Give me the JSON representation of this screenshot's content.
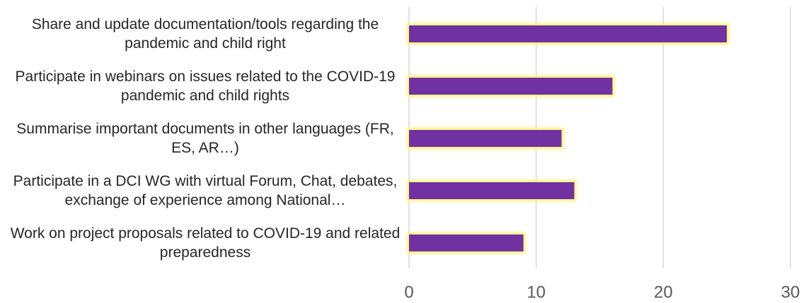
{
  "chart_data": {
    "type": "bar",
    "orientation": "horizontal",
    "categories": [
      "Share and update documentation/tools regarding the pandemic and child right",
      "Participate in webinars on issues related to the COVID-19 pandemic and child rights",
      "Summarise important documents in other languages (FR, ES, AR…)",
      "Participate in a DCI WG with virtual Forum, Chat, debates, exchange of experience among National…",
      "Work on project proposals related to COVID-19 and related preparedness"
    ],
    "values": [
      25,
      16,
      12,
      13,
      9
    ],
    "color": "#7030a0",
    "xlim": [
      0,
      30
    ],
    "xticks": [
      0,
      10,
      20,
      30
    ],
    "grid": true
  }
}
